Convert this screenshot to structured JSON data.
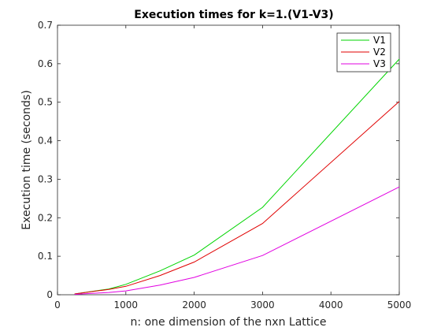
{
  "chart_data": {
    "type": "line",
    "title": "Execution times for k=1.(V1-V3)",
    "xlabel": "n: one dimension of the nxn Lattice",
    "ylabel": "Execution time (seconds)",
    "xlim": [
      0,
      5000
    ],
    "ylim": [
      0,
      0.7
    ],
    "x_ticks": [
      0,
      1000,
      2000,
      3000,
      4000,
      5000
    ],
    "y_ticks": [
      0,
      0.1,
      0.2,
      0.3,
      0.4,
      0.5,
      0.6,
      0.7
    ],
    "x_tick_labels": [
      "0",
      "1000",
      "2000",
      "3000",
      "4000",
      "5000"
    ],
    "y_tick_labels": [
      "0",
      "0.1",
      "0.2",
      "0.3",
      "0.4",
      "0.5",
      "0.6",
      "0.7"
    ],
    "grid": false,
    "legend_position": "top-right",
    "x": [
      250,
      750,
      1000,
      1500,
      2000,
      3000,
      5000
    ],
    "series": [
      {
        "name": "V1",
        "color": "#00d400",
        "values": [
          0.002,
          0.015,
          0.027,
          0.062,
          0.103,
          0.227,
          0.612
        ]
      },
      {
        "name": "V2",
        "color": "#e00000",
        "values": [
          0.002,
          0.014,
          0.022,
          0.05,
          0.085,
          0.185,
          0.502
        ]
      },
      {
        "name": "V3",
        "color": "#e100e1",
        "values": [
          0.001,
          0.006,
          0.01,
          0.025,
          0.045,
          0.102,
          0.28
        ]
      }
    ]
  }
}
